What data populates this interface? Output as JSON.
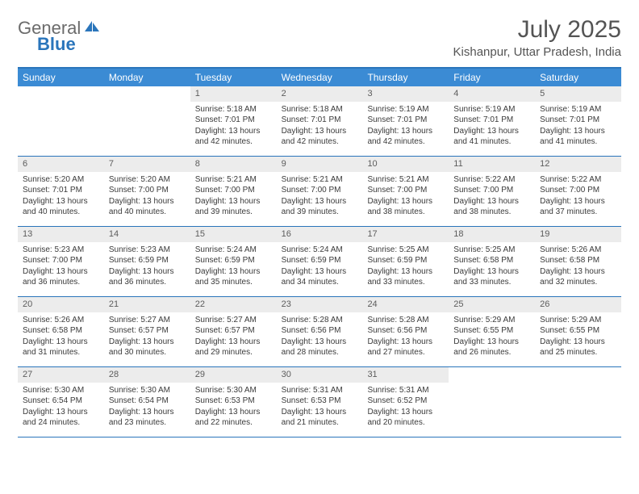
{
  "logo": {
    "gray": "General",
    "blue": "Blue"
  },
  "title": "July 2025",
  "location": "Kishanpur, Uttar Pradesh, India",
  "colors": {
    "header_bg": "#3b8bd4",
    "header_border": "#2a75bb",
    "daynum_bg": "#ececec",
    "text": "#3a3a3a",
    "title_text": "#545454",
    "logo_gray": "#6b6b6b",
    "logo_blue": "#2a75bb"
  },
  "day_headers": [
    "Sunday",
    "Monday",
    "Tuesday",
    "Wednesday",
    "Thursday",
    "Friday",
    "Saturday"
  ],
  "weeks": [
    [
      {
        "empty": true
      },
      {
        "empty": true
      },
      {
        "num": "1",
        "sunrise": "Sunrise: 5:18 AM",
        "sunset": "Sunset: 7:01 PM",
        "daylight": "Daylight: 13 hours and 42 minutes."
      },
      {
        "num": "2",
        "sunrise": "Sunrise: 5:18 AM",
        "sunset": "Sunset: 7:01 PM",
        "daylight": "Daylight: 13 hours and 42 minutes."
      },
      {
        "num": "3",
        "sunrise": "Sunrise: 5:19 AM",
        "sunset": "Sunset: 7:01 PM",
        "daylight": "Daylight: 13 hours and 42 minutes."
      },
      {
        "num": "4",
        "sunrise": "Sunrise: 5:19 AM",
        "sunset": "Sunset: 7:01 PM",
        "daylight": "Daylight: 13 hours and 41 minutes."
      },
      {
        "num": "5",
        "sunrise": "Sunrise: 5:19 AM",
        "sunset": "Sunset: 7:01 PM",
        "daylight": "Daylight: 13 hours and 41 minutes."
      }
    ],
    [
      {
        "num": "6",
        "sunrise": "Sunrise: 5:20 AM",
        "sunset": "Sunset: 7:01 PM",
        "daylight": "Daylight: 13 hours and 40 minutes."
      },
      {
        "num": "7",
        "sunrise": "Sunrise: 5:20 AM",
        "sunset": "Sunset: 7:00 PM",
        "daylight": "Daylight: 13 hours and 40 minutes."
      },
      {
        "num": "8",
        "sunrise": "Sunrise: 5:21 AM",
        "sunset": "Sunset: 7:00 PM",
        "daylight": "Daylight: 13 hours and 39 minutes."
      },
      {
        "num": "9",
        "sunrise": "Sunrise: 5:21 AM",
        "sunset": "Sunset: 7:00 PM",
        "daylight": "Daylight: 13 hours and 39 minutes."
      },
      {
        "num": "10",
        "sunrise": "Sunrise: 5:21 AM",
        "sunset": "Sunset: 7:00 PM",
        "daylight": "Daylight: 13 hours and 38 minutes."
      },
      {
        "num": "11",
        "sunrise": "Sunrise: 5:22 AM",
        "sunset": "Sunset: 7:00 PM",
        "daylight": "Daylight: 13 hours and 38 minutes."
      },
      {
        "num": "12",
        "sunrise": "Sunrise: 5:22 AM",
        "sunset": "Sunset: 7:00 PM",
        "daylight": "Daylight: 13 hours and 37 minutes."
      }
    ],
    [
      {
        "num": "13",
        "sunrise": "Sunrise: 5:23 AM",
        "sunset": "Sunset: 7:00 PM",
        "daylight": "Daylight: 13 hours and 36 minutes."
      },
      {
        "num": "14",
        "sunrise": "Sunrise: 5:23 AM",
        "sunset": "Sunset: 6:59 PM",
        "daylight": "Daylight: 13 hours and 36 minutes."
      },
      {
        "num": "15",
        "sunrise": "Sunrise: 5:24 AM",
        "sunset": "Sunset: 6:59 PM",
        "daylight": "Daylight: 13 hours and 35 minutes."
      },
      {
        "num": "16",
        "sunrise": "Sunrise: 5:24 AM",
        "sunset": "Sunset: 6:59 PM",
        "daylight": "Daylight: 13 hours and 34 minutes."
      },
      {
        "num": "17",
        "sunrise": "Sunrise: 5:25 AM",
        "sunset": "Sunset: 6:59 PM",
        "daylight": "Daylight: 13 hours and 33 minutes."
      },
      {
        "num": "18",
        "sunrise": "Sunrise: 5:25 AM",
        "sunset": "Sunset: 6:58 PM",
        "daylight": "Daylight: 13 hours and 33 minutes."
      },
      {
        "num": "19",
        "sunrise": "Sunrise: 5:26 AM",
        "sunset": "Sunset: 6:58 PM",
        "daylight": "Daylight: 13 hours and 32 minutes."
      }
    ],
    [
      {
        "num": "20",
        "sunrise": "Sunrise: 5:26 AM",
        "sunset": "Sunset: 6:58 PM",
        "daylight": "Daylight: 13 hours and 31 minutes."
      },
      {
        "num": "21",
        "sunrise": "Sunrise: 5:27 AM",
        "sunset": "Sunset: 6:57 PM",
        "daylight": "Daylight: 13 hours and 30 minutes."
      },
      {
        "num": "22",
        "sunrise": "Sunrise: 5:27 AM",
        "sunset": "Sunset: 6:57 PM",
        "daylight": "Daylight: 13 hours and 29 minutes."
      },
      {
        "num": "23",
        "sunrise": "Sunrise: 5:28 AM",
        "sunset": "Sunset: 6:56 PM",
        "daylight": "Daylight: 13 hours and 28 minutes."
      },
      {
        "num": "24",
        "sunrise": "Sunrise: 5:28 AM",
        "sunset": "Sunset: 6:56 PM",
        "daylight": "Daylight: 13 hours and 27 minutes."
      },
      {
        "num": "25",
        "sunrise": "Sunrise: 5:29 AM",
        "sunset": "Sunset: 6:55 PM",
        "daylight": "Daylight: 13 hours and 26 minutes."
      },
      {
        "num": "26",
        "sunrise": "Sunrise: 5:29 AM",
        "sunset": "Sunset: 6:55 PM",
        "daylight": "Daylight: 13 hours and 25 minutes."
      }
    ],
    [
      {
        "num": "27",
        "sunrise": "Sunrise: 5:30 AM",
        "sunset": "Sunset: 6:54 PM",
        "daylight": "Daylight: 13 hours and 24 minutes."
      },
      {
        "num": "28",
        "sunrise": "Sunrise: 5:30 AM",
        "sunset": "Sunset: 6:54 PM",
        "daylight": "Daylight: 13 hours and 23 minutes."
      },
      {
        "num": "29",
        "sunrise": "Sunrise: 5:30 AM",
        "sunset": "Sunset: 6:53 PM",
        "daylight": "Daylight: 13 hours and 22 minutes."
      },
      {
        "num": "30",
        "sunrise": "Sunrise: 5:31 AM",
        "sunset": "Sunset: 6:53 PM",
        "daylight": "Daylight: 13 hours and 21 minutes."
      },
      {
        "num": "31",
        "sunrise": "Sunrise: 5:31 AM",
        "sunset": "Sunset: 6:52 PM",
        "daylight": "Daylight: 13 hours and 20 minutes."
      },
      {
        "empty": true
      },
      {
        "empty": true
      }
    ]
  ]
}
